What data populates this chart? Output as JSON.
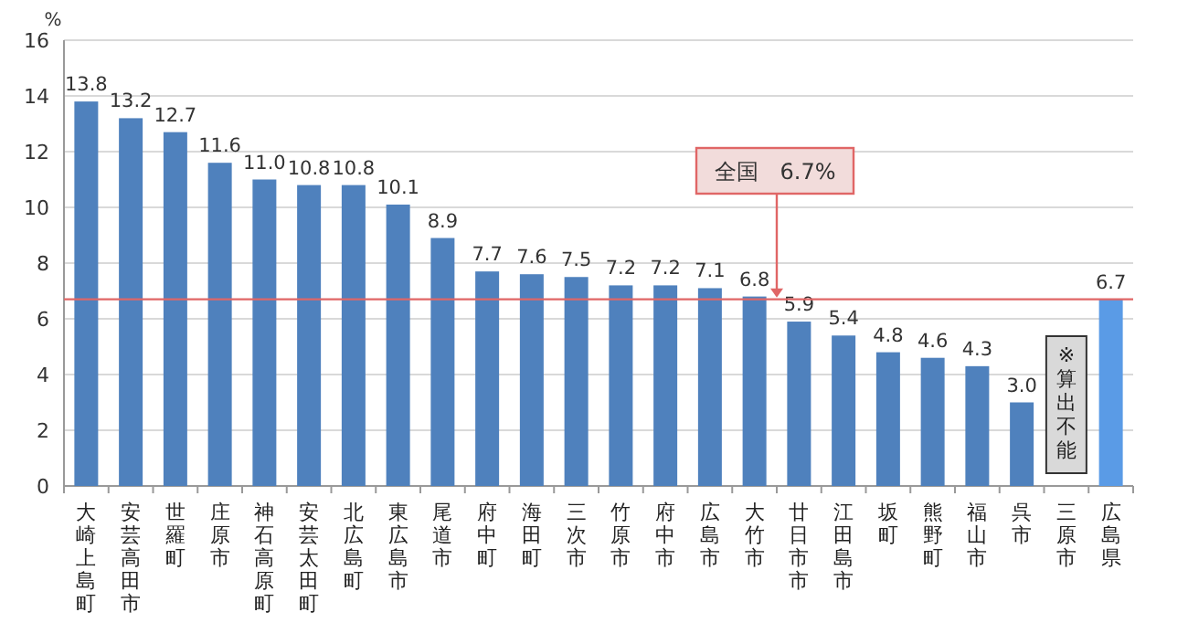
{
  "chart_data": {
    "type": "bar",
    "ylabel": "%",
    "categories": [
      "大崎上島町",
      "安芸高田市",
      "世羅町",
      "庄原市",
      "神石高原町",
      "安芸太田町",
      "北広島町",
      "東広島市",
      "尾道市",
      "府中町",
      "海田町",
      "三次市",
      "竹原市",
      "府中市",
      "広島市",
      "大竹市",
      "廿日市市",
      "江田島市",
      "坂町",
      "熊野町",
      "福山市",
      "呉市",
      "三原市",
      "広島県"
    ],
    "values": [
      13.8,
      13.2,
      12.7,
      11.6,
      11.0,
      10.8,
      10.8,
      10.1,
      8.9,
      7.7,
      7.6,
      7.5,
      7.2,
      7.2,
      7.1,
      6.8,
      5.9,
      5.4,
      4.8,
      4.6,
      4.3,
      3.0,
      null,
      6.7
    ],
    "value_labels": [
      "13.8",
      "13.2",
      "12.7",
      "11.6",
      "11.0",
      "10.8",
      "10.8",
      "10.1",
      "8.9",
      "7.7",
      "7.6",
      "7.5",
      "7.2",
      "7.2",
      "7.1",
      "6.8",
      "5.9",
      "5.4",
      "4.8",
      "4.6",
      "4.3",
      "3.0",
      null,
      "6.7"
    ],
    "colors": [
      "#4f81bd",
      "#4f81bd",
      "#4f81bd",
      "#4f81bd",
      "#4f81bd",
      "#4f81bd",
      "#4f81bd",
      "#4f81bd",
      "#4f81bd",
      "#4f81bd",
      "#4f81bd",
      "#4f81bd",
      "#4f81bd",
      "#4f81bd",
      "#4f81bd",
      "#4f81bd",
      "#4f81bd",
      "#4f81bd",
      "#4f81bd",
      "#4f81bd",
      "#4f81bd",
      "#4f81bd",
      null,
      "#5a9be6"
    ],
    "ylim": [
      0,
      16
    ],
    "yticks": [
      0,
      2,
      4,
      6,
      8,
      10,
      12,
      14,
      16
    ],
    "grid": "y",
    "ref_lines": [
      {
        "axis": "y",
        "value": 6.7,
        "label": "全国　6.7%",
        "color": "#e06666"
      }
    ],
    "annotations": [
      "※算出不能"
    ]
  }
}
